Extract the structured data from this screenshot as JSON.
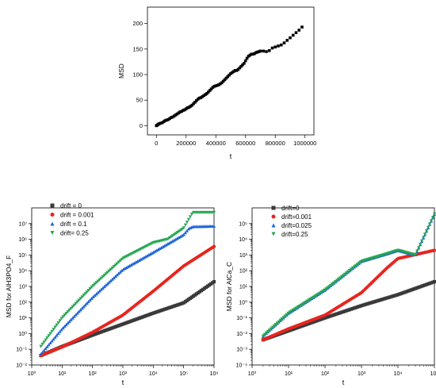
{
  "chart_data": [
    {
      "type": "scatter",
      "xlabel": "t",
      "ylabel": "MSD",
      "xlim": [
        -60000,
        1060000
      ],
      "ylim": [
        -18,
        232
      ],
      "x_ticks": [
        0,
        200000,
        400000,
        600000,
        800000,
        1000000
      ],
      "x_tick_labels": [
        "0",
        "200000",
        "400000",
        "600000",
        "800000",
        "1000000"
      ],
      "y_ticks": [
        0,
        50,
        100,
        150,
        200
      ],
      "y_tick_labels": [
        "0",
        "50",
        "100",
        "150",
        "200"
      ],
      "grid": false,
      "series": [
        {
          "color": "#000000",
          "marker": "square",
          "x": [
            0,
            5000,
            10000,
            15000,
            20000,
            30000,
            40000,
            50000,
            60000,
            70000,
            80000,
            90000,
            100000,
            110000,
            120000,
            130000,
            140000,
            150000,
            160000,
            170000,
            180000,
            190000,
            200000,
            210000,
            220000,
            230000,
            240000,
            250000,
            260000,
            270000,
            280000,
            290000,
            300000,
            310000,
            320000,
            330000,
            340000,
            350000,
            360000,
            370000,
            380000,
            390000,
            400000,
            410000,
            420000,
            430000,
            440000,
            450000,
            460000,
            470000,
            480000,
            490000,
            500000,
            510000,
            520000,
            530000,
            540000,
            550000,
            560000,
            570000,
            580000,
            590000,
            600000,
            610000,
            620000,
            630000,
            640000,
            650000,
            660000,
            670000,
            680000,
            690000,
            700000,
            720000,
            740000,
            760000,
            780000,
            800000,
            820000,
            840000,
            860000,
            880000,
            900000,
            920000,
            940000,
            960000,
            980000
          ],
          "y": [
            0,
            1,
            2,
            3,
            4,
            5,
            6,
            8,
            10,
            11,
            12,
            14,
            16,
            17,
            19,
            21,
            23,
            25,
            27,
            28,
            30,
            31,
            33,
            35,
            36,
            38,
            40,
            43,
            46,
            49,
            52,
            54,
            55,
            57,
            59,
            61,
            63,
            66,
            69,
            72,
            75,
            77,
            78,
            79,
            80,
            82,
            84,
            87,
            90,
            93,
            96,
            99,
            102,
            104,
            106,
            108,
            108,
            110,
            113,
            116,
            119,
            122,
            127,
            132,
            136,
            138,
            140,
            140,
            141,
            143,
            144,
            145,
            146,
            146,
            145,
            147,
            152,
            154,
            156,
            158,
            162,
            167,
            172,
            177,
            182,
            187,
            193
          ]
        }
      ]
    },
    {
      "type": "scatter",
      "xlabel": "t",
      "ylabel": "MSD for  AlH3PO4_F",
      "log_x": true,
      "log_y": true,
      "xlim": [
        1,
        1000000
      ],
      "ylim": [
        0.01,
        100000000
      ],
      "x_tick_labels": [
        "10⁰",
        "10¹",
        "10²",
        "10³",
        "10⁴",
        "10⁵",
        "10⁶"
      ],
      "y_tick_labels": [
        "10⁻²",
        "10⁻¹",
        "10⁰",
        "10¹",
        "10²",
        "10³",
        "10⁴",
        "10⁵",
        "10⁶",
        "10⁷"
      ],
      "legend": "top-left",
      "series": [
        {
          "name": "drift = 0",
          "color": "#3a3a3a",
          "marker": "square",
          "x": [
            2,
            10,
            100,
            1000,
            10000,
            100000,
            1000000
          ],
          "y": [
            0.04,
            0.15,
            0.8,
            4,
            20,
            90,
            2000
          ]
        },
        {
          "name": "drift = 0.001",
          "color": "#e8241e",
          "marker": "circle",
          "x": [
            2,
            10,
            100,
            1000,
            10000,
            100000,
            1000000
          ],
          "y": [
            0.04,
            0.14,
            1.2,
            15,
            500,
            20000,
            350000
          ]
        },
        {
          "name": "drift = 0.1",
          "color": "#2064d8",
          "marker": "triangle-up",
          "x": [
            2,
            10,
            100,
            1000,
            10000,
            100000,
            150000,
            200000,
            1000000
          ],
          "y": [
            0.05,
            2,
            200,
            12000,
            150000,
            2000000,
            5000000,
            6500000,
            7000000
          ]
        },
        {
          "name": "drift= 0.25",
          "color": "#26a651",
          "marker": "triangle-down",
          "x": [
            2,
            10,
            100,
            1000,
            10000,
            30000,
            100000,
            150000,
            200000,
            1000000
          ],
          "y": [
            0.15,
            10,
            1000,
            60000,
            600000,
            1000000,
            5000000,
            20000000,
            50000000,
            50000000
          ]
        }
      ]
    },
    {
      "type": "scatter",
      "xlabel": "t",
      "ylabel": "MSD for AlCa_C",
      "log_x": true,
      "log_y": true,
      "xlim": [
        1,
        100000
      ],
      "ylim": [
        0.0001,
        1000000
      ],
      "x_tick_labels": [
        "10⁰",
        "10¹",
        "10²",
        "10³",
        "10⁴",
        "10⁵"
      ],
      "y_tick_labels": [
        "10⁻⁴",
        "10⁻³",
        "10⁻²",
        "10⁻¹",
        "10⁰",
        "10¹",
        "10²",
        "10³",
        "10⁴",
        "10⁵"
      ],
      "legend": "top-left",
      "series": [
        {
          "name": "drift=0",
          "color": "#3a3a3a",
          "marker": "square",
          "x": [
            2,
            10,
            100,
            1000,
            10000,
            100000
          ],
          "y": [
            0.004,
            0.015,
            0.1,
            0.6,
            3,
            20
          ]
        },
        {
          "name": "drift=0.001",
          "color": "#e8241e",
          "marker": "circle",
          "x": [
            2,
            10,
            100,
            1000,
            5000,
            10000,
            100000
          ],
          "y": [
            0.004,
            0.02,
            0.15,
            4,
            150,
            600,
            2000
          ]
        },
        {
          "name": "drift=0.025",
          "color": "#2064d8",
          "marker": "triangle-up",
          "x": [
            2,
            10,
            100,
            1000,
            5000,
            10000,
            30000,
            100000
          ],
          "y": [
            0.007,
            0.2,
            6,
            400,
            1200,
            2000,
            1000,
            400000
          ]
        },
        {
          "name": "drift=0.25",
          "color": "#26a651",
          "marker": "triangle-down",
          "x": [
            2,
            10,
            100,
            1000,
            5000,
            10000,
            30000,
            100000
          ],
          "y": [
            0.007,
            0.2,
            6,
            400,
            1200,
            2000,
            1000,
            400000
          ]
        }
      ]
    }
  ]
}
